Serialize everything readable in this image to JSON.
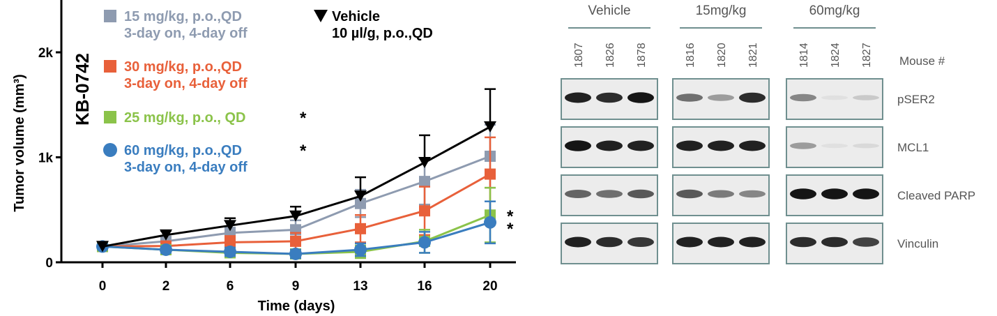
{
  "colors": {
    "vehicle": "#000000",
    "dose15": "#8e9bb0",
    "dose30": "#e8603a",
    "dose25": "#8bc34a",
    "dose60": "#3a7dbf",
    "blot_border": "#6f8f8f",
    "blot_bg": "#ececec"
  },
  "chart_data": {
    "type": "line",
    "title": "KB-0742",
    "xlabel": "Time (days)",
    "ylabel": "Tumor volume (mm³)",
    "categories": [
      "0",
      "2",
      "6",
      "9",
      "13",
      "16",
      "20"
    ],
    "ylim": [
      0,
      2400
    ],
    "yticks": [
      {
        "value": 0,
        "label": "0"
      },
      {
        "value": 1000,
        "label": "1k"
      },
      {
        "value": 2000,
        "label": "2k"
      }
    ],
    "legend": [
      {
        "key": "dose15",
        "marker": "square",
        "lines": [
          "15 mg/kg, p.o.,QD",
          "3-day on, 4-day off"
        ],
        "star": ""
      },
      {
        "key": "dose30",
        "marker": "square",
        "lines": [
          "30 mg/kg, p.o.,QD",
          "3-day on, 4-day off"
        ],
        "star": ""
      },
      {
        "key": "dose25",
        "marker": "square",
        "lines": [
          "25 mg/kg, p.o., QD"
        ],
        "star": "*"
      },
      {
        "key": "dose60",
        "marker": "circle",
        "lines": [
          "60 mg/kg, p.o.,QD",
          "3-day on, 4-day off"
        ],
        "star": "*"
      },
      {
        "key": "vehicle",
        "marker": "triangle-down",
        "lines": [
          "Vehicle",
          "10 µl/g, p.o.,QD"
        ],
        "star": ""
      }
    ],
    "series": [
      {
        "key": "vehicle",
        "values": [
          150,
          260,
          350,
          440,
          630,
          950,
          1290
        ],
        "err": [
          0,
          40,
          70,
          90,
          180,
          260,
          360
        ]
      },
      {
        "key": "dose15",
        "values": [
          150,
          200,
          280,
          310,
          560,
          770,
          1010
        ],
        "err": [
          0,
          40,
          50,
          90,
          130,
          220,
          300
        ]
      },
      {
        "key": "dose30",
        "values": [
          150,
          155,
          190,
          200,
          320,
          490,
          840
        ],
        "err": [
          0,
          30,
          60,
          80,
          130,
          230,
          350
        ]
      },
      {
        "key": "dose25",
        "values": [
          150,
          120,
          90,
          80,
          100,
          200,
          450
        ],
        "err": [
          0,
          30,
          40,
          40,
          60,
          110,
          260
        ]
      },
      {
        "key": "dose60",
        "values": [
          150,
          120,
          100,
          80,
          120,
          190,
          380
        ],
        "err": [
          0,
          30,
          40,
          40,
          60,
          100,
          200
        ]
      }
    ],
    "annotations": [
      "*",
      "*"
    ]
  },
  "blot": {
    "groups": [
      {
        "label": "Vehicle",
        "mice": [
          "1807",
          "1826",
          "1878"
        ]
      },
      {
        "label": "15mg/kg",
        "mice": [
          "1816",
          "1820",
          "1821"
        ]
      },
      {
        "label": "60mg/kg",
        "mice": [
          "1814",
          "1824",
          "1827"
        ]
      }
    ],
    "mouse_header": "Mouse #",
    "rows": [
      "pSER2",
      "MCL1",
      "Cleaved PARP",
      "Vinculin"
    ],
    "intensity": [
      [
        [
          0.9,
          0.85,
          0.95
        ],
        [
          0.55,
          0.35,
          0.85
        ],
        [
          0.45,
          0.05,
          0.15
        ]
      ],
      [
        [
          0.95,
          0.9,
          0.9
        ],
        [
          0.9,
          0.9,
          0.9
        ],
        [
          0.35,
          0.05,
          0.08
        ]
      ],
      [
        [
          0.6,
          0.55,
          0.65
        ],
        [
          0.65,
          0.5,
          0.45
        ],
        [
          0.95,
          0.95,
          0.95
        ]
      ],
      [
        [
          0.9,
          0.85,
          0.8
        ],
        [
          0.9,
          0.9,
          0.9
        ],
        [
          0.85,
          0.85,
          0.75
        ]
      ]
    ]
  }
}
